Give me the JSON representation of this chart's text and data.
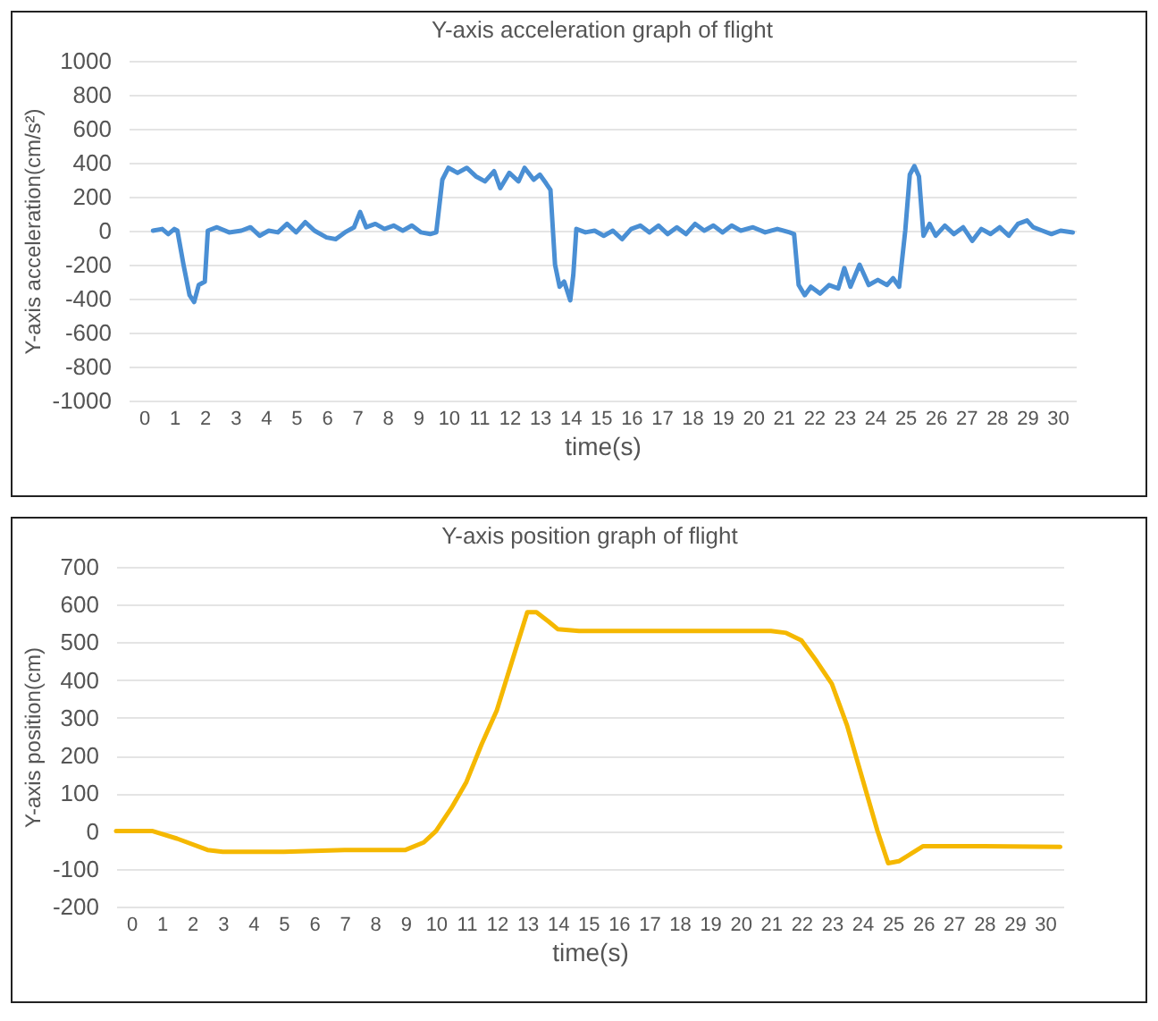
{
  "chart_data": [
    {
      "type": "line",
      "title": "Y-axis acceleration graph of flight",
      "xlabel": "time(s)",
      "ylabel": "Y-axis acceleration(cm/s²)",
      "xlim": [
        -0.5,
        30.6
      ],
      "xticks": [
        0,
        1,
        2,
        3,
        4,
        5,
        6,
        7,
        8,
        9,
        10,
        11,
        12,
        13,
        14,
        15,
        16,
        17,
        18,
        19,
        20,
        21,
        22,
        23,
        24,
        25,
        26,
        27,
        28,
        29,
        30
      ],
      "ylim": [
        -1000,
        1000
      ],
      "yticks": [
        -1000,
        -800,
        -600,
        -400,
        -200,
        0,
        200,
        400,
        600,
        800,
        1000
      ],
      "grid": "y",
      "line_style": "solid",
      "series": [
        {
          "color": "#4a8fd4",
          "x": [
            0.3,
            0.6,
            0.8,
            1.0,
            1.1,
            1.3,
            1.5,
            1.65,
            1.8,
            2.0,
            2.1,
            2.4,
            2.8,
            3.2,
            3.5,
            3.8,
            4.1,
            4.4,
            4.7,
            5.0,
            5.3,
            5.6,
            6.0,
            6.3,
            6.6,
            6.9,
            7.1,
            7.3,
            7.6,
            7.9,
            8.2,
            8.5,
            8.8,
            9.1,
            9.4,
            9.6,
            9.8,
            10.0,
            10.3,
            10.6,
            10.9,
            11.2,
            11.5,
            11.7,
            12.0,
            12.3,
            12.5,
            12.8,
            13.0,
            13.2,
            13.35,
            13.5,
            13.65,
            13.8,
            14.0,
            14.1,
            14.2,
            14.5,
            14.8,
            15.1,
            15.4,
            15.7,
            16.0,
            16.3,
            16.6,
            16.9,
            17.2,
            17.5,
            17.8,
            18.1,
            18.4,
            18.7,
            19.0,
            19.3,
            19.6,
            20.0,
            20.4,
            20.8,
            21.2,
            21.35,
            21.5,
            21.7,
            21.9,
            22.2,
            22.5,
            22.8,
            23.0,
            23.2,
            23.5,
            23.8,
            24.1,
            24.4,
            24.6,
            24.8,
            25.0,
            25.15,
            25.3,
            25.45,
            25.6,
            25.8,
            26.0,
            26.3,
            26.6,
            26.9,
            27.2,
            27.5,
            27.8,
            28.1,
            28.4,
            28.7,
            29.0,
            29.2,
            29.5,
            29.8,
            30.1,
            30.5
          ],
          "values": [
            0,
            10,
            -20,
            10,
            0,
            -200,
            -380,
            -420,
            -320,
            -300,
            0,
            20,
            -10,
            0,
            20,
            -30,
            0,
            -10,
            40,
            -10,
            50,
            0,
            -40,
            -50,
            -10,
            20,
            110,
            20,
            40,
            10,
            30,
            0,
            30,
            -10,
            -20,
            -10,
            300,
            370,
            340,
            370,
            320,
            290,
            350,
            250,
            340,
            290,
            370,
            300,
            330,
            280,
            240,
            -200,
            -330,
            -300,
            -410,
            -260,
            10,
            -10,
            0,
            -30,
            0,
            -50,
            10,
            30,
            -10,
            30,
            -20,
            20,
            -20,
            40,
            0,
            30,
            -10,
            30,
            0,
            20,
            -10,
            10,
            -10,
            -20,
            -320,
            -380,
            -330,
            -370,
            -320,
            -340,
            -220,
            -330,
            -200,
            -320,
            -290,
            -320,
            -280,
            -330,
            0,
            330,
            380,
            320,
            -30,
            40,
            -30,
            30,
            -20,
            20,
            -60,
            10,
            -20,
            20,
            -30,
            40,
            60,
            20,
            0,
            -20,
            0,
            -10
          ]
        }
      ]
    },
    {
      "type": "line",
      "title": "Y-axis position graph of flight",
      "xlabel": "time(s)",
      "ylabel": "Y-axis position(cm)",
      "xlim": [
        -0.5,
        30.6
      ],
      "xticks": [
        0,
        1,
        2,
        3,
        4,
        5,
        6,
        7,
        8,
        9,
        10,
        11,
        12,
        13,
        14,
        15,
        16,
        17,
        18,
        19,
        20,
        21,
        22,
        23,
        24,
        25,
        26,
        27,
        28,
        29,
        30
      ],
      "ylim": [
        -200,
        700
      ],
      "yticks": [
        -200,
        -100,
        0,
        100,
        200,
        300,
        400,
        500,
        600,
        700
      ],
      "grid": "y",
      "line_style": "solid",
      "series": [
        {
          "color": "#f5b800",
          "x": [
            -0.5,
            0.7,
            1.5,
            2.5,
            3,
            5,
            7,
            9,
            9.6,
            10,
            10.5,
            11,
            11.5,
            12,
            12.5,
            13,
            13.3,
            13.7,
            14,
            14.7,
            17,
            19,
            21,
            21.5,
            22,
            22.5,
            23,
            23.5,
            24,
            24.5,
            24.85,
            25.2,
            25.6,
            26,
            28,
            30.5
          ],
          "values": [
            0,
            0,
            -20,
            -50,
            -55,
            -55,
            -50,
            -50,
            -30,
            0,
            60,
            130,
            230,
            320,
            450,
            580,
            580,
            555,
            535,
            530,
            530,
            530,
            530,
            525,
            505,
            450,
            390,
            280,
            140,
            0,
            -85,
            -80,
            -60,
            -40,
            -40,
            -42
          ]
        }
      ]
    }
  ]
}
